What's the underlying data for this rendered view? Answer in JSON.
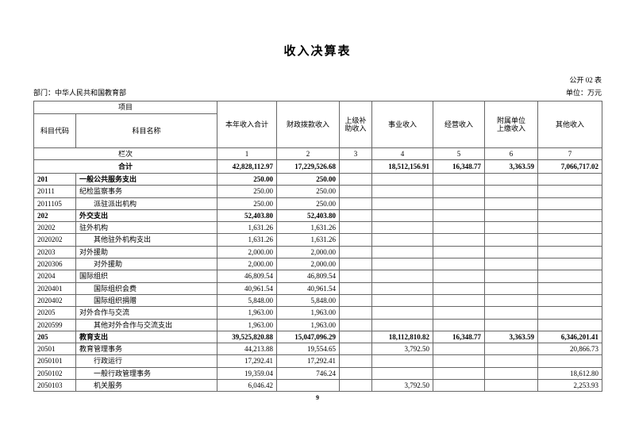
{
  "page": {
    "title": "收入决算表",
    "table_code": "公开 02 表",
    "department": "部门：中华人民共和国教育部",
    "unit": "单位：万元",
    "page_number": "9"
  },
  "table": {
    "header": {
      "project_label": "项目",
      "subject_code_label": "科目代码",
      "subject_name_label": "科目名称",
      "columns": [
        "本年收入合计",
        "财政拨款收入",
        "上级补\n助收入",
        "事业收入",
        "经营收入",
        "附属单位\n上缴收入",
        "其他收入"
      ],
      "lanci_label": "栏次",
      "column_numbers": [
        "1",
        "2",
        "3",
        "4",
        "5",
        "6",
        "7"
      ]
    },
    "total_row": {
      "label": "合计",
      "values": [
        "42,828,112.97",
        "17,229,526.68",
        "",
        "18,512,156.91",
        "16,348.77",
        "3,363.59",
        "7,066,717.02"
      ]
    },
    "rows": [
      {
        "code": "201",
        "name": "一般公共服务支出",
        "indent": false,
        "bold": true,
        "values": [
          "250.00",
          "250.00",
          "",
          "",
          "",
          "",
          ""
        ]
      },
      {
        "code": "20111",
        "name": "纪检监察事务",
        "indent": false,
        "bold": false,
        "values": [
          "250.00",
          "250.00",
          "",
          "",
          "",
          "",
          ""
        ]
      },
      {
        "code": "2011105",
        "name": "派驻派出机构",
        "indent": true,
        "bold": false,
        "values": [
          "250.00",
          "250.00",
          "",
          "",
          "",
          "",
          ""
        ]
      },
      {
        "code": "202",
        "name": "外交支出",
        "indent": false,
        "bold": true,
        "values": [
          "52,403.80",
          "52,403.80",
          "",
          "",
          "",
          "",
          ""
        ]
      },
      {
        "code": "20202",
        "name": "驻外机构",
        "indent": false,
        "bold": false,
        "values": [
          "1,631.26",
          "1,631.26",
          "",
          "",
          "",
          "",
          ""
        ]
      },
      {
        "code": "2020202",
        "name": "其他驻外机构支出",
        "indent": true,
        "bold": false,
        "values": [
          "1,631.26",
          "1,631.26",
          "",
          "",
          "",
          "",
          ""
        ]
      },
      {
        "code": "20203",
        "name": "对外援助",
        "indent": false,
        "bold": false,
        "values": [
          "2,000.00",
          "2,000.00",
          "",
          "",
          "",
          "",
          ""
        ]
      },
      {
        "code": "2020306",
        "name": "对外援助",
        "indent": true,
        "bold": false,
        "values": [
          "2,000.00",
          "2,000.00",
          "",
          "",
          "",
          "",
          ""
        ]
      },
      {
        "code": "20204",
        "name": "国际组织",
        "indent": false,
        "bold": false,
        "values": [
          "46,809.54",
          "46,809.54",
          "",
          "",
          "",
          "",
          ""
        ]
      },
      {
        "code": "2020401",
        "name": "国际组织会费",
        "indent": true,
        "bold": false,
        "values": [
          "40,961.54",
          "40,961.54",
          "",
          "",
          "",
          "",
          ""
        ]
      },
      {
        "code": "2020402",
        "name": "国际组织捐赠",
        "indent": true,
        "bold": false,
        "values": [
          "5,848.00",
          "5,848.00",
          "",
          "",
          "",
          "",
          ""
        ]
      },
      {
        "code": "20205",
        "name": "对外合作与交流",
        "indent": false,
        "bold": false,
        "values": [
          "1,963.00",
          "1,963.00",
          "",
          "",
          "",
          "",
          ""
        ]
      },
      {
        "code": "2020599",
        "name": "其他对外合作与交流支出",
        "indent": true,
        "bold": false,
        "values": [
          "1,963.00",
          "1,963.00",
          "",
          "",
          "",
          "",
          ""
        ]
      },
      {
        "code": "205",
        "name": "教育支出",
        "indent": false,
        "bold": true,
        "values": [
          "39,525,820.88",
          "15,047,096.29",
          "",
          "18,112,810.82",
          "16,348.77",
          "3,363.59",
          "6,346,201.41"
        ]
      },
      {
        "code": "20501",
        "name": "教育管理事务",
        "indent": false,
        "bold": false,
        "values": [
          "44,213.88",
          "19,554.65",
          "",
          "3,792.50",
          "",
          "",
          "20,866.73"
        ]
      },
      {
        "code": "2050101",
        "name": "行政运行",
        "indent": true,
        "bold": false,
        "values": [
          "17,292.41",
          "17,292.41",
          "",
          "",
          "",
          "",
          ""
        ]
      },
      {
        "code": "2050102",
        "name": "一般行政管理事务",
        "indent": true,
        "bold": false,
        "values": [
          "19,359.04",
          "746.24",
          "",
          "",
          "",
          "",
          "18,612.80"
        ]
      },
      {
        "code": "2050103",
        "name": "机关服务",
        "indent": true,
        "bold": false,
        "values": [
          "6,046.42",
          "",
          "",
          "3,792.50",
          "",
          "",
          "2,253.93"
        ]
      }
    ]
  }
}
